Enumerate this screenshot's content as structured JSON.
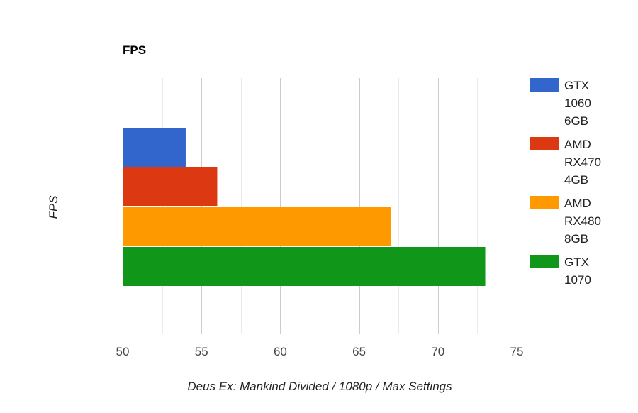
{
  "chart_data": {
    "type": "bar",
    "orientation": "horizontal",
    "title": "FPS",
    "xlabel": "Deus Ex: Mankind Divided / 1080p / Max Settings",
    "ylabel": "FPS",
    "xlim": [
      50,
      75
    ],
    "xticks": [
      "50",
      "55",
      "60",
      "65",
      "70",
      "75"
    ],
    "grid": true,
    "legend_position": "right",
    "series": [
      {
        "name": "GTX 1060 6GB",
        "legend_lines": [
          "GTX",
          "1060",
          "6GB"
        ],
        "value": 54,
        "color": "#3366cc"
      },
      {
        "name": "AMD RX470 4GB",
        "legend_lines": [
          "AMD",
          "RX470",
          "4GB"
        ],
        "value": 56,
        "color": "#dc3912"
      },
      {
        "name": "AMD RX480 8GB",
        "legend_lines": [
          "AMD",
          "RX480",
          "8GB"
        ],
        "value": 67,
        "color": "#ff9900"
      },
      {
        "name": "GTX 1070",
        "legend_lines": [
          "GTX",
          "1070"
        ],
        "value": 73,
        "color": "#109618"
      }
    ]
  }
}
